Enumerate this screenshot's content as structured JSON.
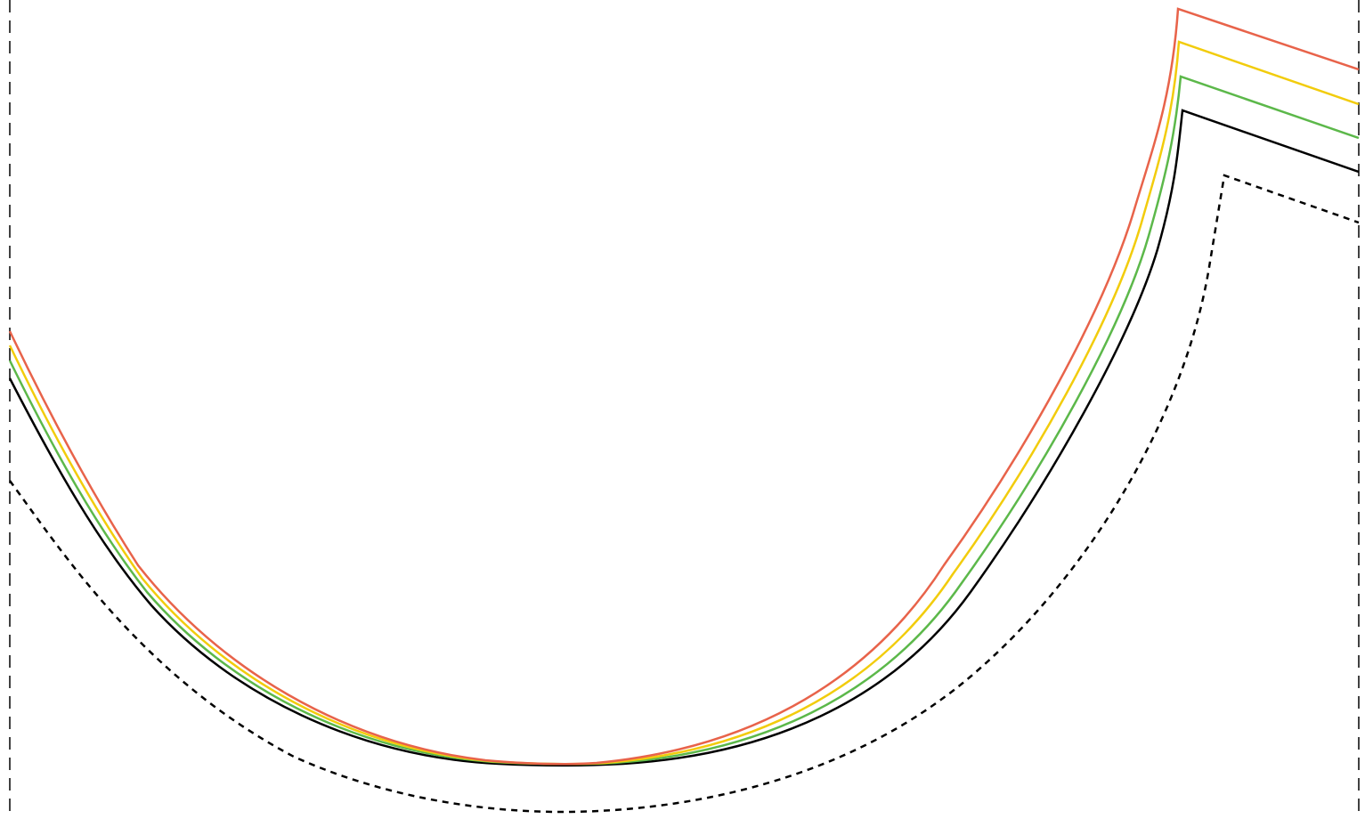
{
  "diagram": {
    "guides": {
      "style": "dashed",
      "color": "#000000"
    },
    "curves": [
      {
        "name": "red",
        "color": "#e8634a",
        "style": "solid"
      },
      {
        "name": "yellow",
        "color": "#f2cc0c",
        "style": "solid"
      },
      {
        "name": "green",
        "color": "#5cb84a",
        "style": "solid"
      },
      {
        "name": "black",
        "color": "#000000",
        "style": "solid"
      },
      {
        "name": "dashed-outline",
        "color": "#000000",
        "style": "dashed"
      }
    ]
  }
}
